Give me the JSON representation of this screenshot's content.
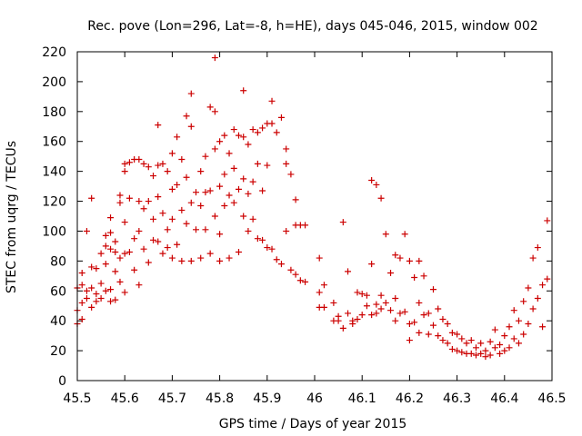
{
  "chart_data": {
    "type": "scatter",
    "title": "Rec. pove (Lon=296, Lat=-8, h=HE), days 045-046, 2015, window 002",
    "xlabel": "GPS time / Days of year 2015",
    "ylabel": "STEC from uqrg / TECUs",
    "xlim": [
      45.5,
      46.5
    ],
    "ylim": [
      0,
      220
    ],
    "x_ticks": [
      "45.5",
      "45.6",
      "45.7",
      "45.8",
      "45.9",
      "46",
      "46.1",
      "46.2",
      "46.3",
      "46.4",
      "46.5"
    ],
    "y_ticks": [
      "0",
      "20",
      "40",
      "60",
      "80",
      "100",
      "120",
      "140",
      "160",
      "180",
      "200",
      "220"
    ],
    "grid": false,
    "legend": "none",
    "marker": "plus",
    "color": "#cc0000",
    "points": [
      [
        45.5,
        62
      ],
      [
        45.5,
        47
      ],
      [
        45.5,
        38
      ],
      [
        45.51,
        72
      ],
      [
        45.51,
        64
      ],
      [
        45.51,
        52
      ],
      [
        45.51,
        41
      ],
      [
        45.52,
        100
      ],
      [
        45.52,
        60
      ],
      [
        45.52,
        55
      ],
      [
        45.53,
        122
      ],
      [
        45.53,
        76
      ],
      [
        45.53,
        62
      ],
      [
        45.53,
        49
      ],
      [
        45.54,
        75
      ],
      [
        45.54,
        58
      ],
      [
        45.54,
        53
      ],
      [
        45.55,
        85
      ],
      [
        45.55,
        65
      ],
      [
        45.55,
        55
      ],
      [
        45.56,
        97
      ],
      [
        45.56,
        90
      ],
      [
        45.56,
        78
      ],
      [
        45.56,
        60
      ],
      [
        45.57,
        109
      ],
      [
        45.57,
        99
      ],
      [
        45.57,
        88
      ],
      [
        45.57,
        61
      ],
      [
        45.57,
        53
      ],
      [
        45.58,
        93
      ],
      [
        45.58,
        86
      ],
      [
        45.58,
        73
      ],
      [
        45.58,
        54
      ],
      [
        45.59,
        124
      ],
      [
        45.59,
        119
      ],
      [
        45.59,
        82
      ],
      [
        45.59,
        66
      ],
      [
        45.6,
        145
      ],
      [
        45.6,
        140
      ],
      [
        45.6,
        106
      ],
      [
        45.6,
        85
      ],
      [
        45.6,
        59
      ],
      [
        45.61,
        146
      ],
      [
        45.61,
        122
      ],
      [
        45.61,
        86
      ],
      [
        45.62,
        148
      ],
      [
        45.62,
        95
      ],
      [
        45.62,
        74
      ],
      [
        45.63,
        148
      ],
      [
        45.63,
        120
      ],
      [
        45.63,
        100
      ],
      [
        45.63,
        64
      ],
      [
        45.64,
        145
      ],
      [
        45.64,
        115
      ],
      [
        45.64,
        88
      ],
      [
        45.65,
        143
      ],
      [
        45.65,
        120
      ],
      [
        45.65,
        79
      ],
      [
        45.66,
        137
      ],
      [
        45.66,
        108
      ],
      [
        45.66,
        94
      ],
      [
        45.67,
        171
      ],
      [
        45.67,
        144
      ],
      [
        45.67,
        123
      ],
      [
        45.67,
        93
      ],
      [
        45.68,
        145
      ],
      [
        45.68,
        112
      ],
      [
        45.68,
        85
      ],
      [
        45.69,
        140
      ],
      [
        45.69,
        101
      ],
      [
        45.69,
        89
      ],
      [
        45.7,
        152
      ],
      [
        45.7,
        128
      ],
      [
        45.7,
        108
      ],
      [
        45.7,
        82
      ],
      [
        45.71,
        163
      ],
      [
        45.71,
        131
      ],
      [
        45.71,
        91
      ],
      [
        45.72,
        148
      ],
      [
        45.72,
        114
      ],
      [
        45.72,
        80
      ],
      [
        45.73,
        177
      ],
      [
        45.73,
        136
      ],
      [
        45.73,
        105
      ],
      [
        45.74,
        192
      ],
      [
        45.74,
        170
      ],
      [
        45.74,
        119
      ],
      [
        45.74,
        80
      ],
      [
        45.75,
        126
      ],
      [
        45.75,
        101
      ],
      [
        45.76,
        140
      ],
      [
        45.76,
        117
      ],
      [
        45.76,
        82
      ],
      [
        45.77,
        150
      ],
      [
        45.77,
        126
      ],
      [
        45.77,
        101
      ],
      [
        45.78,
        183
      ],
      [
        45.78,
        127
      ],
      [
        45.78,
        85
      ],
      [
        45.79,
        216
      ],
      [
        45.79,
        180
      ],
      [
        45.79,
        155
      ],
      [
        45.79,
        110
      ],
      [
        45.8,
        160
      ],
      [
        45.8,
        130
      ],
      [
        45.8,
        98
      ],
      [
        45.8,
        80
      ],
      [
        45.81,
        164
      ],
      [
        45.81,
        138
      ],
      [
        45.81,
        117
      ],
      [
        45.82,
        152
      ],
      [
        45.82,
        124
      ],
      [
        45.82,
        82
      ],
      [
        45.83,
        168
      ],
      [
        45.83,
        142
      ],
      [
        45.83,
        119
      ],
      [
        45.84,
        164
      ],
      [
        45.84,
        128
      ],
      [
        45.84,
        86
      ],
      [
        45.85,
        194
      ],
      [
        45.85,
        163
      ],
      [
        45.85,
        135
      ],
      [
        45.85,
        110
      ],
      [
        45.86,
        158
      ],
      [
        45.86,
        125
      ],
      [
        45.86,
        100
      ],
      [
        45.87,
        168
      ],
      [
        45.87,
        133
      ],
      [
        45.87,
        108
      ],
      [
        45.88,
        166
      ],
      [
        45.88,
        145
      ],
      [
        45.88,
        95
      ],
      [
        45.89,
        169
      ],
      [
        45.89,
        127
      ],
      [
        45.89,
        94
      ],
      [
        45.9,
        172
      ],
      [
        45.9,
        144
      ],
      [
        45.9,
        89
      ],
      [
        45.91,
        187
      ],
      [
        45.91,
        172
      ],
      [
        45.91,
        88
      ],
      [
        45.92,
        166
      ],
      [
        45.92,
        81
      ],
      [
        45.93,
        176
      ],
      [
        45.93,
        78
      ],
      [
        45.94,
        155
      ],
      [
        45.94,
        145
      ],
      [
        45.94,
        100
      ],
      [
        45.95,
        138
      ],
      [
        45.95,
        74
      ],
      [
        45.96,
        121
      ],
      [
        45.96,
        104
      ],
      [
        45.96,
        71
      ],
      [
        45.97,
        104
      ],
      [
        45.97,
        67
      ],
      [
        45.98,
        104
      ],
      [
        45.98,
        66
      ],
      [
        46.01,
        82
      ],
      [
        46.01,
        59
      ],
      [
        46.01,
        49
      ],
      [
        46.02,
        64
      ],
      [
        46.02,
        49
      ],
      [
        46.04,
        52
      ],
      [
        46.04,
        40
      ],
      [
        46.05,
        43
      ],
      [
        46.05,
        40
      ],
      [
        46.06,
        106
      ],
      [
        46.06,
        35
      ],
      [
        46.07,
        73
      ],
      [
        46.07,
        45
      ],
      [
        46.08,
        40
      ],
      [
        46.08,
        38
      ],
      [
        46.09,
        59
      ],
      [
        46.09,
        41
      ],
      [
        46.1,
        58
      ],
      [
        46.1,
        44
      ],
      [
        46.11,
        57
      ],
      [
        46.11,
        50
      ],
      [
        46.12,
        134
      ],
      [
        46.12,
        78
      ],
      [
        46.12,
        44
      ],
      [
        46.13,
        131
      ],
      [
        46.13,
        51
      ],
      [
        46.13,
        45
      ],
      [
        46.14,
        122
      ],
      [
        46.14,
        57
      ],
      [
        46.14,
        48
      ],
      [
        46.15,
        98
      ],
      [
        46.15,
        52
      ],
      [
        46.16,
        72
      ],
      [
        46.16,
        47
      ],
      [
        46.17,
        84
      ],
      [
        46.17,
        55
      ],
      [
        46.17,
        40
      ],
      [
        46.18,
        82
      ],
      [
        46.18,
        45
      ],
      [
        46.19,
        98
      ],
      [
        46.19,
        46
      ],
      [
        46.2,
        80
      ],
      [
        46.2,
        38
      ],
      [
        46.2,
        27
      ],
      [
        46.21,
        69
      ],
      [
        46.21,
        39
      ],
      [
        46.22,
        80
      ],
      [
        46.22,
        52
      ],
      [
        46.22,
        32
      ],
      [
        46.23,
        70
      ],
      [
        46.23,
        44
      ],
      [
        46.24,
        45
      ],
      [
        46.24,
        31
      ],
      [
        46.25,
        61
      ],
      [
        46.25,
        37
      ],
      [
        46.26,
        48
      ],
      [
        46.26,
        30
      ],
      [
        46.27,
        41
      ],
      [
        46.27,
        27
      ],
      [
        46.28,
        38
      ],
      [
        46.28,
        25
      ],
      [
        46.29,
        32
      ],
      [
        46.29,
        21
      ],
      [
        46.3,
        31
      ],
      [
        46.3,
        20
      ],
      [
        46.31,
        28
      ],
      [
        46.31,
        19
      ],
      [
        46.32,
        25
      ],
      [
        46.32,
        18
      ],
      [
        46.33,
        27
      ],
      [
        46.33,
        18
      ],
      [
        46.34,
        22
      ],
      [
        46.34,
        17
      ],
      [
        46.35,
        25
      ],
      [
        46.35,
        18
      ],
      [
        46.36,
        20
      ],
      [
        46.36,
        16
      ],
      [
        46.37,
        26
      ],
      [
        46.37,
        17
      ],
      [
        46.38,
        34
      ],
      [
        46.38,
        22
      ],
      [
        46.39,
        24
      ],
      [
        46.39,
        18
      ],
      [
        46.4,
        30
      ],
      [
        46.4,
        20
      ],
      [
        46.41,
        36
      ],
      [
        46.41,
        22
      ],
      [
        46.42,
        47
      ],
      [
        46.42,
        28
      ],
      [
        46.43,
        40
      ],
      [
        46.43,
        25
      ],
      [
        46.44,
        53
      ],
      [
        46.44,
        31
      ],
      [
        46.45,
        62
      ],
      [
        46.45,
        38
      ],
      [
        46.46,
        82
      ],
      [
        46.46,
        48
      ],
      [
        46.47,
        89
      ],
      [
        46.47,
        55
      ],
      [
        46.48,
        64
      ],
      [
        46.48,
        36
      ],
      [
        46.49,
        107
      ],
      [
        46.49,
        68
      ]
    ]
  }
}
